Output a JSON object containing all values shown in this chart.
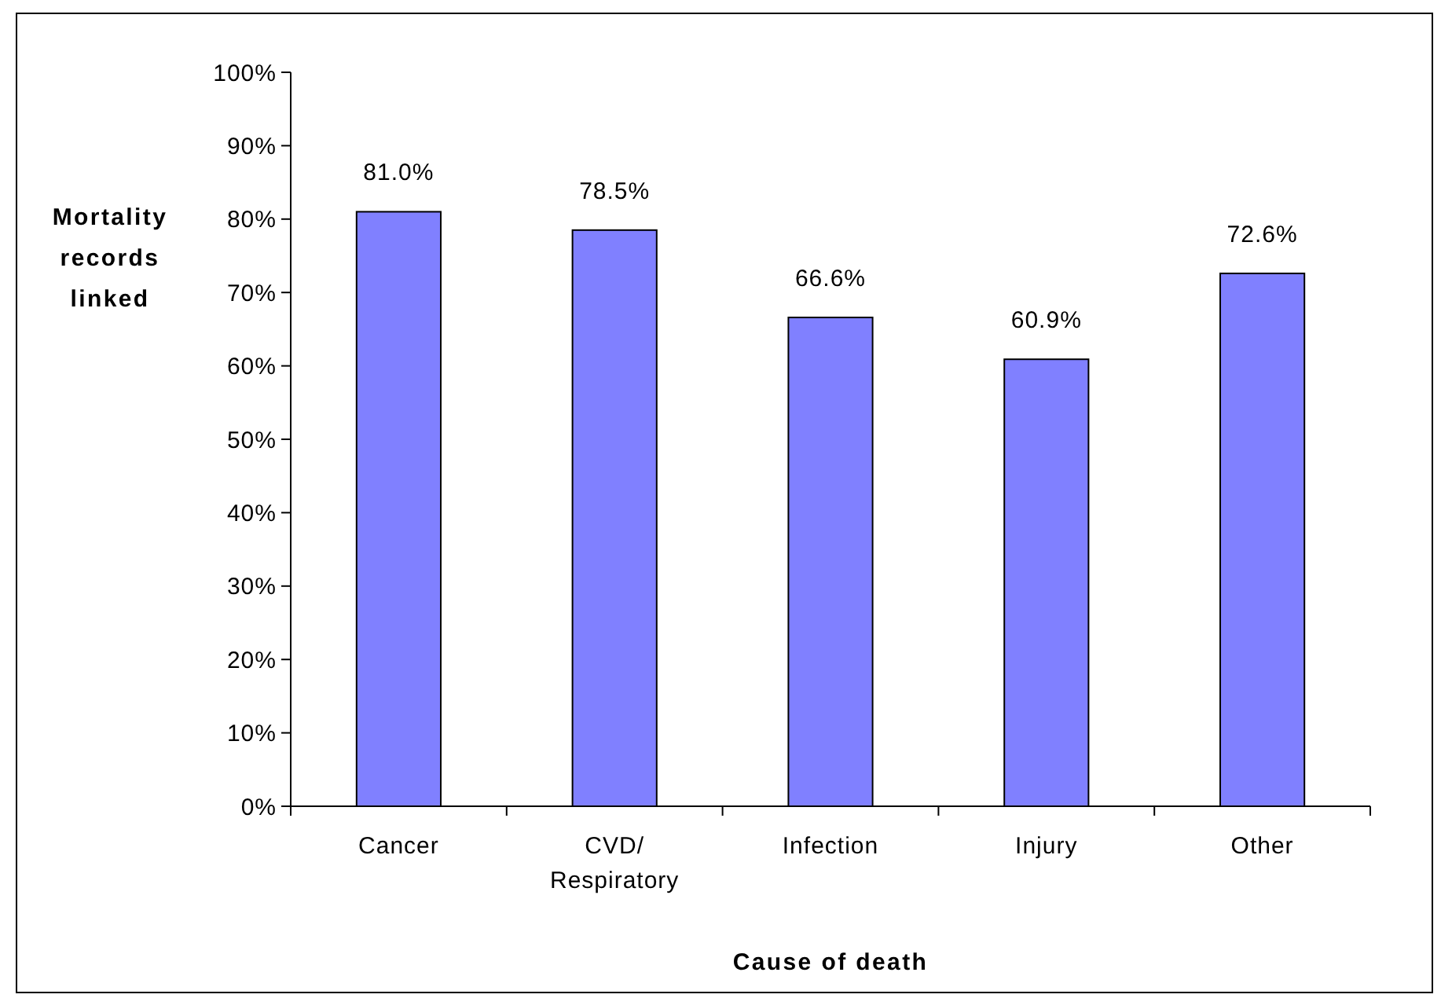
{
  "chart_data": {
    "type": "bar",
    "xlabel": "Cause of death",
    "ylabel": "Mortality records linked",
    "categories": [
      "Cancer",
      "CVD/ Respiratory",
      "Infection",
      "Injury",
      "Other"
    ],
    "values": [
      81.0,
      78.5,
      66.6,
      60.9,
      72.6
    ],
    "value_labels": [
      "81.0%",
      "78.5%",
      "66.6%",
      "60.9%",
      "72.6%"
    ],
    "color": "#8080ff",
    "ylim": [
      0,
      100
    ],
    "yticks": [
      {
        "value": 0,
        "label": "0%"
      },
      {
        "value": 10,
        "label": "10%"
      },
      {
        "value": 20,
        "label": "20%"
      },
      {
        "value": 30,
        "label": "30%"
      },
      {
        "value": 40,
        "label": "40%"
      },
      {
        "value": 50,
        "label": "50%"
      },
      {
        "value": 60,
        "label": "60%"
      },
      {
        "value": 70,
        "label": "70%"
      },
      {
        "value": 80,
        "label": "80%"
      },
      {
        "value": 90,
        "label": "90%"
      },
      {
        "value": 100,
        "label": "100%"
      }
    ],
    "grid": false
  }
}
